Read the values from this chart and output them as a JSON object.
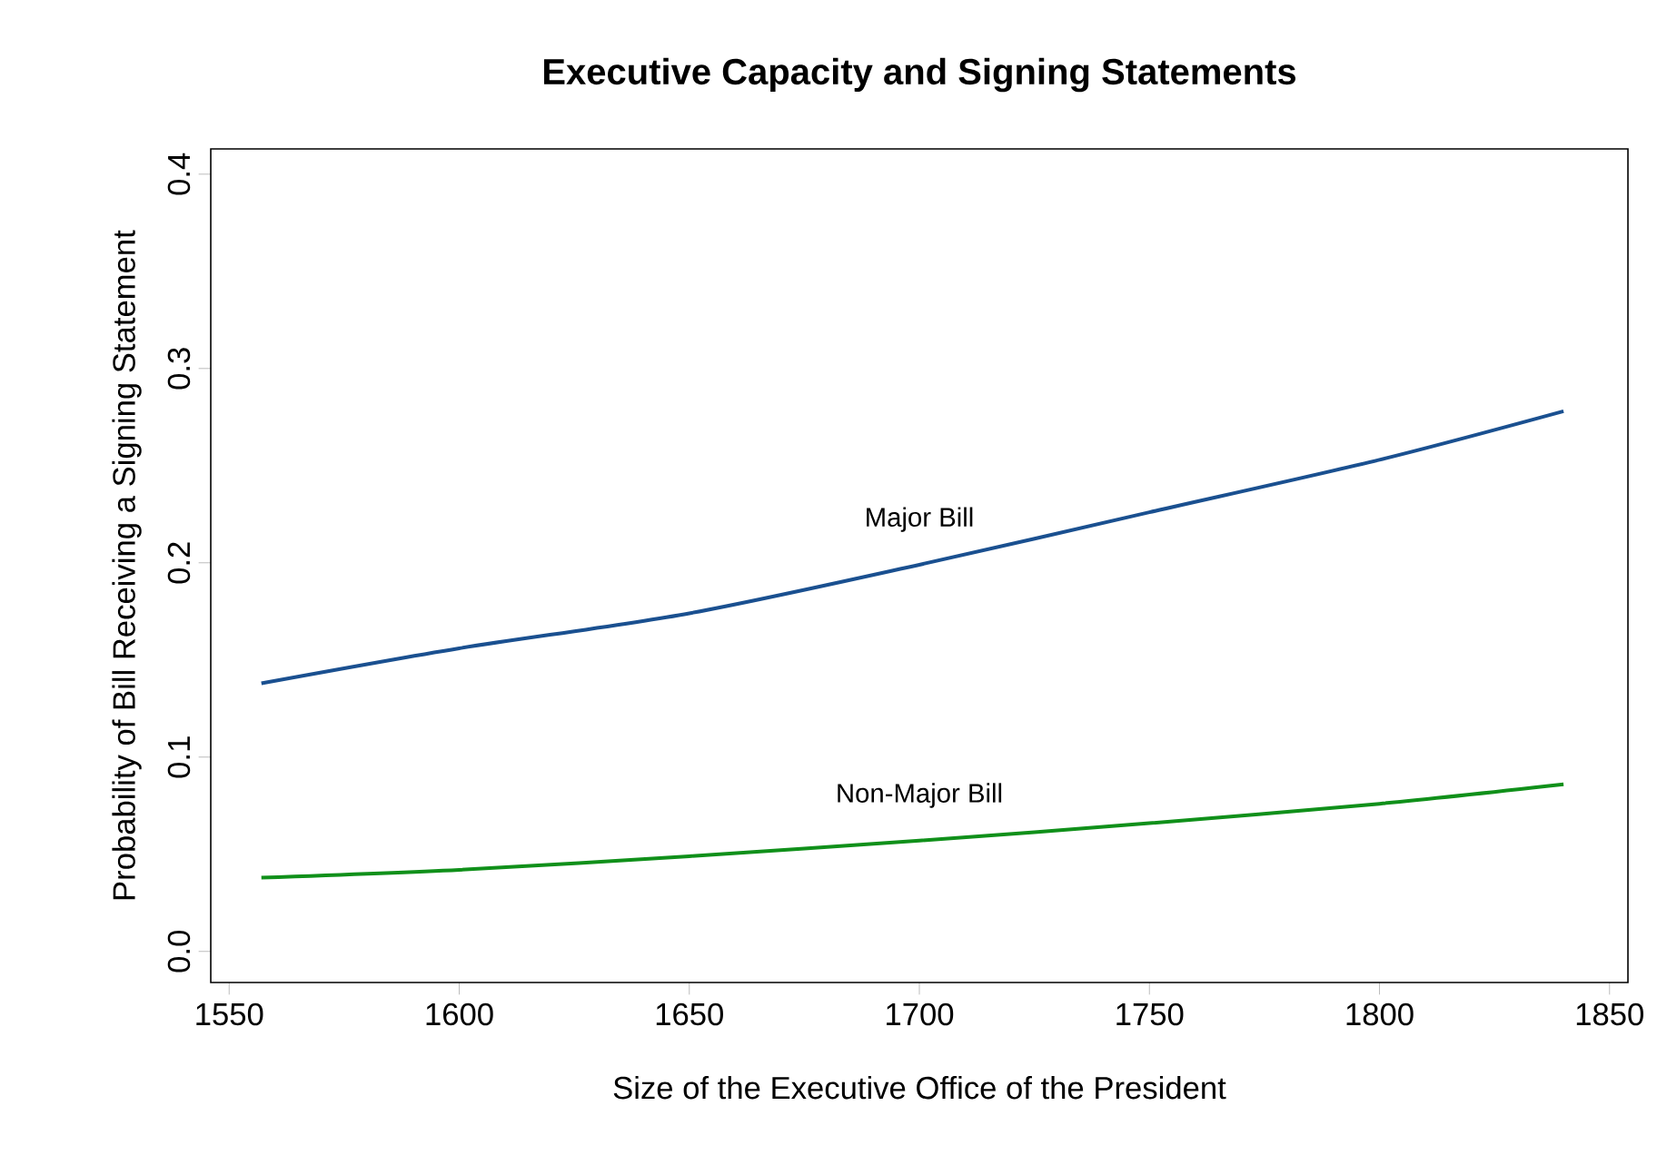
{
  "chart_data": {
    "type": "line",
    "title": "Executive Capacity and Signing Statements",
    "xlabel": "Size of the Executive Office of the President",
    "ylabel": "Probability of Bill Receiving a Signing Statement",
    "series": [
      {
        "name": "Major Bill",
        "x": [
          1557,
          1600,
          1650,
          1700,
          1750,
          1800,
          1840
        ],
        "values": [
          0.138,
          0.156,
          0.174,
          0.199,
          0.226,
          0.253,
          0.278
        ],
        "color": "#1a5090"
      },
      {
        "name": "Non-Major Bill",
        "x": [
          1557,
          1600,
          1650,
          1700,
          1750,
          1800,
          1840
        ],
        "values": [
          0.038,
          0.042,
          0.049,
          0.057,
          0.066,
          0.076,
          0.086
        ],
        "color": "#10901a"
      }
    ],
    "xlim": [
      1546,
      1854
    ],
    "ylim": [
      -0.016,
      0.413
    ],
    "xticks": [
      1550,
      1600,
      1650,
      1700,
      1750,
      1800,
      1850
    ],
    "yticks": [
      {
        "value": 0,
        "label": "0.0"
      },
      0.1,
      0.2,
      0.3,
      0.4
    ],
    "grid": false,
    "marker": "none",
    "line_style": "solid"
  }
}
